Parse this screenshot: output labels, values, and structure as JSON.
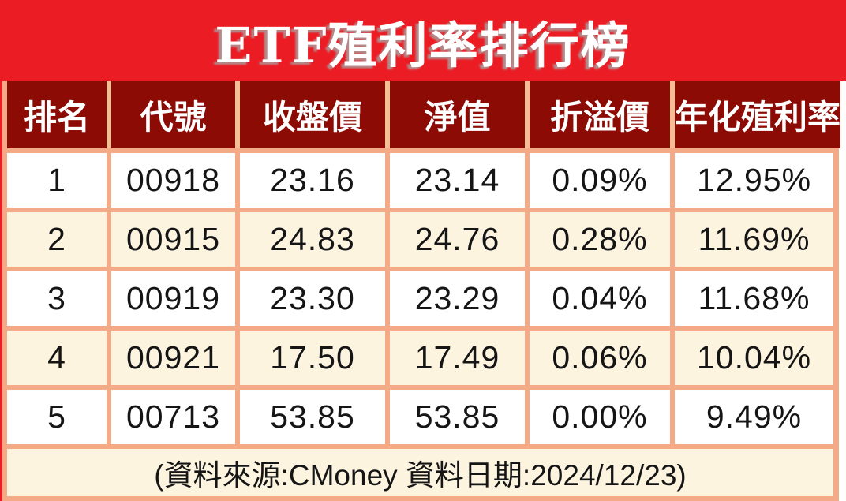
{
  "title": "ETF殖利率排行榜",
  "colors": {
    "banner_red": "#EC1C24",
    "header_maroon": "#8C0B04",
    "grid_salmon": "#F5AA87",
    "header_divider_peach": "#F3BE93",
    "row_alt_cream": "#FDF4E0",
    "title_text": "#ffffff",
    "body_text": "#151515"
  },
  "chart_data": {
    "type": "table",
    "title": "ETF殖利率排行榜",
    "columns": [
      "排名",
      "代號",
      "收盤價",
      "淨值",
      "折溢價",
      "年化殖利率"
    ],
    "rows": [
      [
        "1",
        "00918",
        "23.16",
        "23.14",
        "0.09%",
        "12.95%"
      ],
      [
        "2",
        "00915",
        "24.83",
        "24.76",
        "0.28%",
        "11.69%"
      ],
      [
        "3",
        "00919",
        "23.30",
        "23.29",
        "0.04%",
        "11.68%"
      ],
      [
        "4",
        "00921",
        "17.50",
        "17.49",
        "0.06%",
        "10.04%"
      ],
      [
        "5",
        "00713",
        "53.85",
        "53.85",
        "0.00%",
        "9.49%"
      ]
    ],
    "source_note": "(資料來源:CMoney 資料日期:2024/12/23)"
  }
}
